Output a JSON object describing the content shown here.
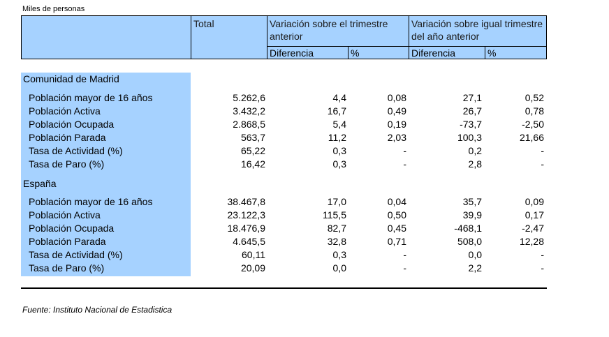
{
  "units": "Miles de personas",
  "header": {
    "total": "Total",
    "var_trimestre": "Variación sobre el trimestre anterior",
    "var_anio": "Variación sobre igual trimestre del año anterior",
    "diferencia": "Diferencia",
    "pct": "%"
  },
  "sections": [
    {
      "name": "Comunidad de Madrid",
      "rows": [
        {
          "label": "Población mayor de 16 años",
          "total": "5.262,6",
          "dif1": "4,4",
          "pct1": "0,08",
          "dif2": "27,1",
          "pct2": "0,52"
        },
        {
          "label": "Población Activa",
          "total": "3.432,2",
          "dif1": "16,7",
          "pct1": "0,49",
          "dif2": "26,7",
          "pct2": "0,78"
        },
        {
          "label": "Población Ocupada",
          "total": "2.868,5",
          "dif1": "5,4",
          "pct1": "0,19",
          "dif2": "-73,7",
          "pct2": "-2,50"
        },
        {
          "label": "Población Parada",
          "total": "563,7",
          "dif1": "11,2",
          "pct1": "2,03",
          "dif2": "100,3",
          "pct2": "21,66"
        },
        {
          "label": "Tasa de Actividad (%)",
          "total": "65,22",
          "dif1": "0,3",
          "pct1": "-",
          "dif2": "0,2",
          "pct2": "-"
        },
        {
          "label": "Tasa de Paro (%)",
          "total": "16,42",
          "dif1": "0,3",
          "pct1": "-",
          "dif2": "2,8",
          "pct2": "-"
        }
      ]
    },
    {
      "name": "España",
      "rows": [
        {
          "label": "Población mayor de 16 años",
          "total": "38.467,8",
          "dif1": "17,0",
          "pct1": "0,04",
          "dif2": "35,7",
          "pct2": "0,09"
        },
        {
          "label": "Población Activa",
          "total": "23.122,3",
          "dif1": "115,5",
          "pct1": "0,50",
          "dif2": "39,9",
          "pct2": "0,17"
        },
        {
          "label": "Población Ocupada",
          "total": "18.476,9",
          "dif1": "82,7",
          "pct1": "0,45",
          "dif2": "-468,1",
          "pct2": "-2,47"
        },
        {
          "label": "Población Parada",
          "total": "4.645,5",
          "dif1": "32,8",
          "pct1": "0,71",
          "dif2": "508,0",
          "pct2": "12,28"
        },
        {
          "label": "Tasa de Actividad (%)",
          "total": "60,11",
          "dif1": "0,3",
          "pct1": "-",
          "dif2": "0,0",
          "pct2": "-"
        },
        {
          "label": "Tasa de Paro (%)",
          "total": "20,09",
          "dif1": "0,0",
          "pct1": "-",
          "dif2": "2,2",
          "pct2": "-"
        }
      ]
    }
  ],
  "source": "Fuente: Instituto Nacional de Estadistica",
  "colors": {
    "header_fill": "#a6d2ff"
  }
}
